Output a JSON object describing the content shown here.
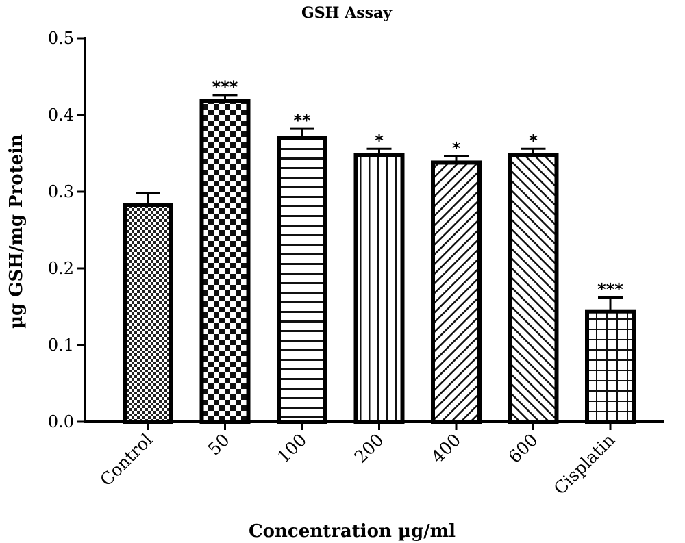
{
  "chart_data": {
    "type": "bar",
    "title": "GSH Assay",
    "xlabel": "Concentration µg/ml",
    "ylabel": "µg GSH/mg Protein",
    "ylim": [
      0,
      0.5
    ],
    "yticks": [
      "0.0",
      "0.1",
      "0.2",
      "0.3",
      "0.4",
      "0.5"
    ],
    "categories": [
      "Control",
      "50",
      "100",
      "200",
      "400",
      "600",
      "Cisplatin"
    ],
    "values": [
      0.283,
      0.418,
      0.37,
      0.348,
      0.338,
      0.348,
      0.144
    ],
    "errors": [
      0.015,
      0.008,
      0.012,
      0.008,
      0.008,
      0.008,
      0.018
    ],
    "significance": [
      "",
      "***",
      "**",
      "*",
      "*",
      "*",
      "***"
    ],
    "fill_patterns": [
      "fine-checker",
      "checker",
      "horizontal-lines",
      "vertical-lines",
      "diagonal-lines",
      "diagonal-lines-reverse",
      "grid"
    ],
    "grid": false,
    "legend": "none"
  }
}
